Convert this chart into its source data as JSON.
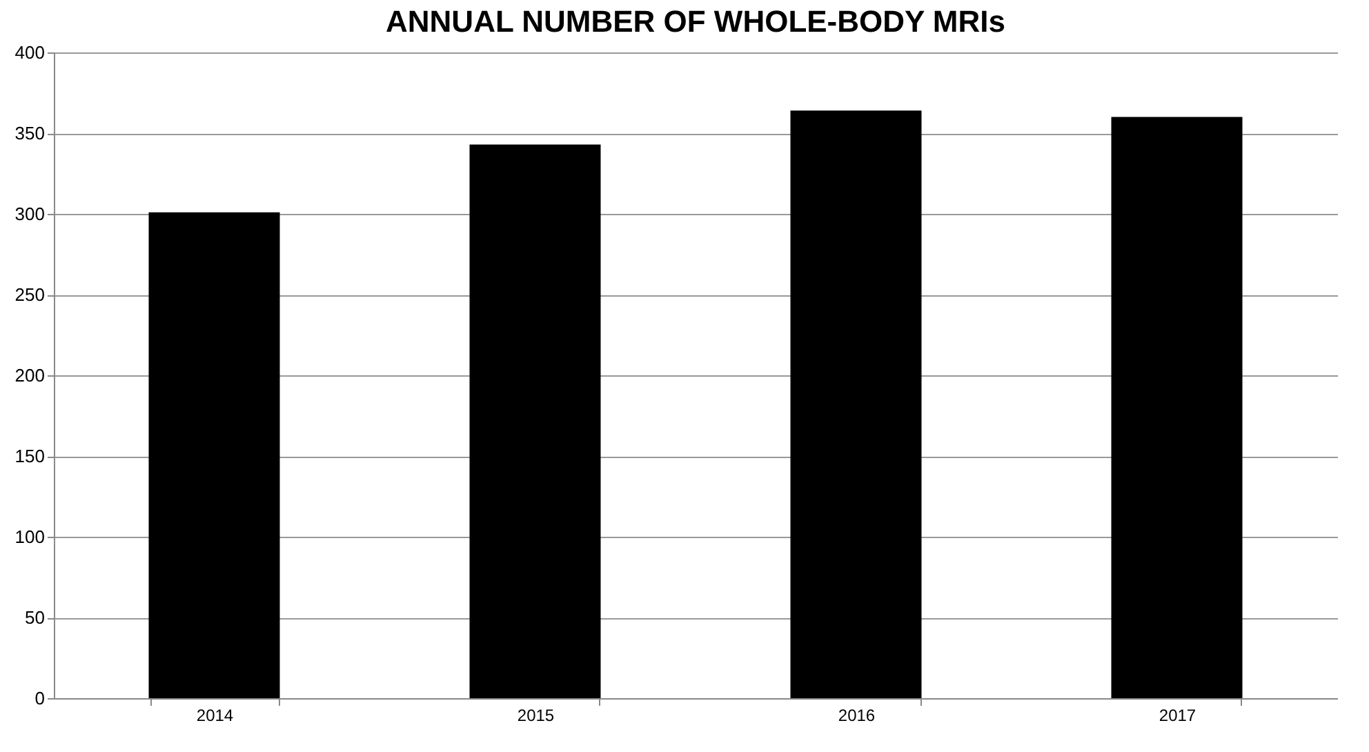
{
  "chart_data": {
    "type": "bar",
    "title": "ANNUAL NUMBER OF WHOLE-BODY MRIs",
    "categories": [
      "2014",
      "2015",
      "2016",
      "2017"
    ],
    "values": [
      301,
      343,
      364,
      360
    ],
    "color": "#000000",
    "ylim": [
      0,
      400
    ],
    "yticks": [
      0,
      50,
      100,
      150,
      200,
      250,
      300,
      350,
      400
    ],
    "grid": "y"
  }
}
